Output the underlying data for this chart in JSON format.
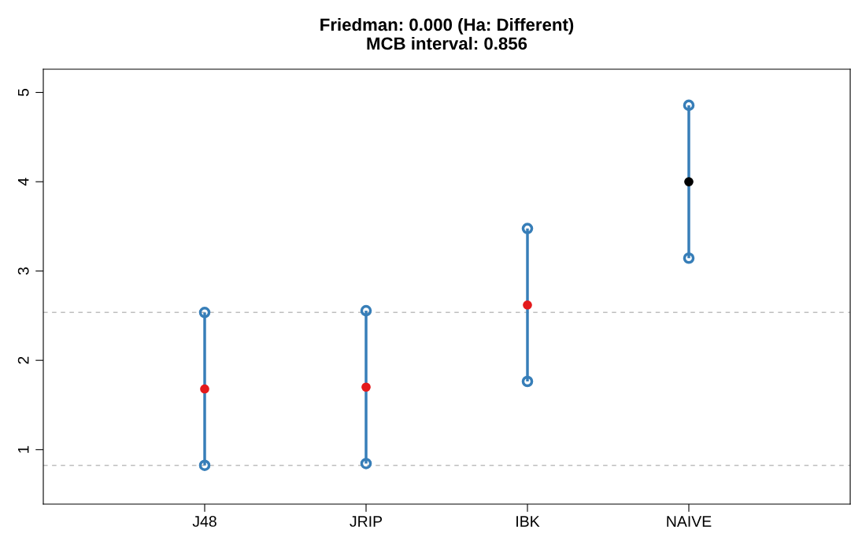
{
  "chart_data": {
    "type": "scatter",
    "title": "Friedman: 0.000 (Ha: Different)\nMCB interval: 0.856",
    "categories": [
      "J48",
      "JRIP",
      "IBK",
      "NAIVE"
    ],
    "series": [
      {
        "color": "#377eb8",
        "colors": [
          "#e41a1c",
          "#e41a1c",
          "#e41a1c",
          "#000000"
        ],
        "values": [
          1.68,
          1.7,
          2.62,
          4.0
        ],
        "errors": [
          0.856,
          0.856,
          0.856,
          0.856
        ]
      }
    ],
    "ylim": [
      0.39,
      5.26
    ],
    "yticks": [
      1,
      2,
      3,
      4,
      5
    ],
    "ref_lines": [
      {
        "axis": "y",
        "value": 0.824,
        "color": "#bebebe",
        "line_style": "dashed"
      },
      {
        "axis": "y",
        "value": 2.536,
        "color": "#bebebe",
        "line_style": "dashed"
      }
    ],
    "marker": "circle",
    "grid": false,
    "legend": false
  }
}
